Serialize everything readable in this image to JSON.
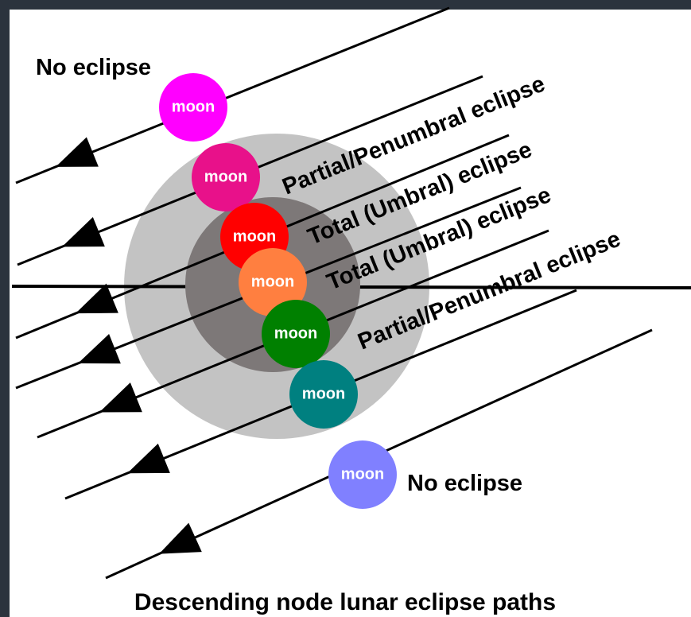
{
  "title": "Descending node lunar eclipse paths",
  "labels": [
    "No eclipse",
    "Partial/Penumbral eclipse",
    "Total (Umbral) eclipse",
    "Total (Umbral) eclipse",
    "Partial/Penumbral eclipse",
    "No eclipse"
  ],
  "moons": [
    "moon",
    "moon",
    "moon",
    "moon",
    "moon",
    "moon",
    "moon"
  ]
}
